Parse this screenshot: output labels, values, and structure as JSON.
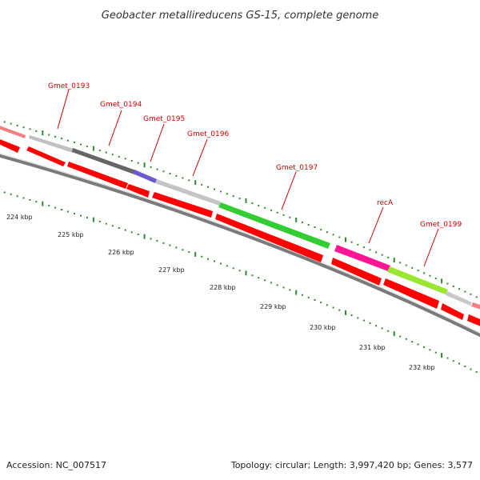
{
  "title": "Geobacter metallireducens GS-15, complete genome",
  "footer": {
    "accession": "Accession: NC_007517",
    "summary": "Topology: circular; Length: 3,997,420 bp; Genes: 3,577"
  },
  "colors": {
    "cds_red": "#ff0000",
    "tick_green": "#2e8b2e",
    "label_red": "#cc0000",
    "backbone": "#7a7a7a"
  },
  "scale": {
    "unit": "kbp",
    "labels": [
      "224 kbp",
      "225 kbp",
      "226 kbp",
      "227 kbp",
      "228 kbp",
      "229 kbp",
      "230 kbp",
      "231 kbp",
      "232 kbp"
    ]
  },
  "gene_labels": [
    "Gmet_0193",
    "Gmet_0194",
    "Gmet_0195",
    "Gmet_0196",
    "Gmet_0197",
    "recA",
    "Gmet_0199"
  ],
  "feature_colors": [
    {
      "color": "#f08080"
    },
    {
      "color": "#c0c0c0"
    },
    {
      "color": "#666666"
    },
    {
      "color": "#6a5acd"
    },
    {
      "color": "#c4c4c4"
    },
    {
      "color": "#33cc33"
    },
    {
      "color": "#ff1493"
    },
    {
      "color": "#99e633"
    },
    {
      "color": "#c8c8c8"
    },
    {
      "color": "#f08080"
    }
  ]
}
